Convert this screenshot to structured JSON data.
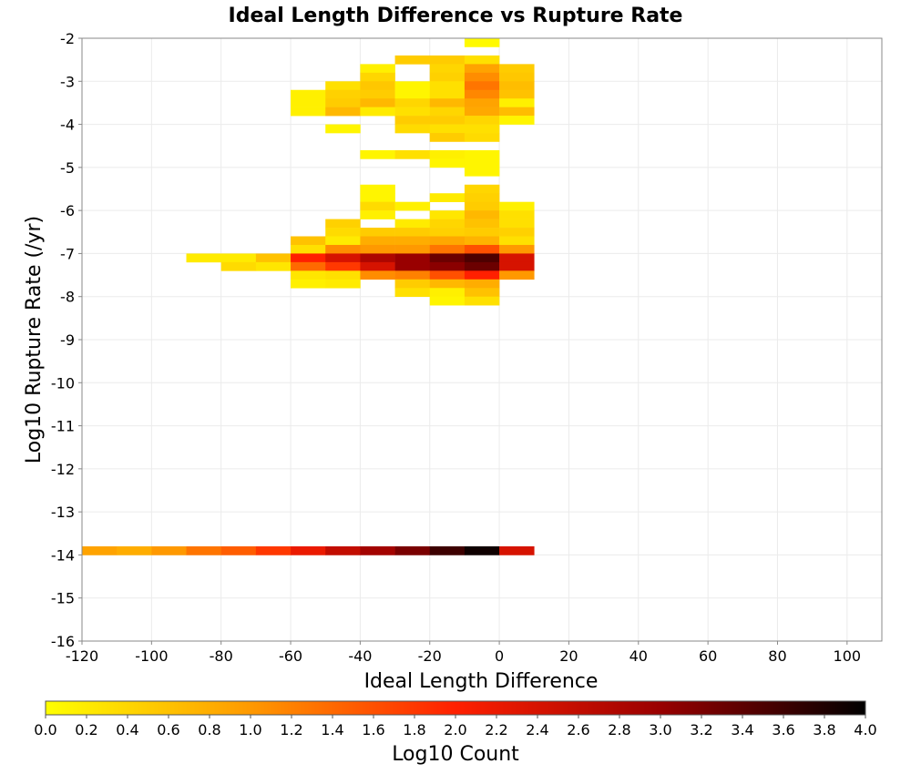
{
  "chart_data": {
    "type": "heatmap",
    "title": "Ideal Length Difference vs Rupture Rate",
    "xlabel": "Ideal Length Difference",
    "ylabel": "Log10 Rupture Rate (/yr)",
    "xlim": [
      -120,
      110
    ],
    "ylim": [
      -16,
      -2
    ],
    "x_ticks": [
      "-120",
      "-100",
      "-80",
      "-60",
      "-40",
      "-20",
      "0",
      "20",
      "40",
      "60",
      "80",
      "100"
    ],
    "y_ticks": [
      "-2",
      "-3",
      "-4",
      "-5",
      "-6",
      "-7",
      "-8",
      "-9",
      "-10",
      "-11",
      "-12",
      "-13",
      "-14",
      "-15",
      "-16"
    ],
    "grid": true,
    "bin_width_x": 10,
    "bin_height_y": 0.2,
    "colorbar": {
      "label": "Log10 Count",
      "range": [
        0,
        4
      ],
      "ticks": [
        "0.0",
        "0.2",
        "0.4",
        "0.6",
        "0.8",
        "1.0",
        "1.2",
        "1.4",
        "1.6",
        "1.8",
        "2.0",
        "2.2",
        "2.4",
        "2.6",
        "2.8",
        "3.0",
        "3.2",
        "3.4",
        "3.6",
        "3.8",
        "4.0"
      ],
      "colors": [
        "#ffff00",
        "#ff9900",
        "#ff2000",
        "#990000",
        "#000000"
      ]
    },
    "rows": [
      {
        "y": -2.0,
        "cells": [
          [
            -10,
            0.05
          ]
        ]
      },
      {
        "y": -2.4,
        "cells": [
          [
            -30,
            0.5
          ],
          [
            -20,
            0.5
          ],
          [
            -10,
            0.3
          ]
        ]
      },
      {
        "y": -2.6,
        "cells": [
          [
            -40,
            0.15
          ],
          [
            -20,
            0.4
          ],
          [
            -10,
            0.9
          ],
          [
            0,
            0.5
          ]
        ]
      },
      {
        "y": -2.8,
        "cells": [
          [
            -40,
            0.4
          ],
          [
            -20,
            0.45
          ],
          [
            -10,
            1.1
          ],
          [
            0,
            0.55
          ]
        ]
      },
      {
        "y": -3.0,
        "cells": [
          [
            -50,
            0.3
          ],
          [
            -40,
            0.55
          ],
          [
            -30,
            0.1
          ],
          [
            -20,
            0.3
          ],
          [
            -10,
            1.3
          ],
          [
            0,
            0.65
          ]
        ]
      },
      {
        "y": -3.2,
        "cells": [
          [
            -60,
            0.15
          ],
          [
            -50,
            0.45
          ],
          [
            -40,
            0.5
          ],
          [
            -30,
            0.1
          ],
          [
            -20,
            0.3
          ],
          [
            -10,
            1.15
          ],
          [
            0,
            0.6
          ]
        ]
      },
      {
        "y": -3.4,
        "cells": [
          [
            -60,
            0.15
          ],
          [
            -50,
            0.5
          ],
          [
            -40,
            0.7
          ],
          [
            -30,
            0.4
          ],
          [
            -20,
            0.7
          ],
          [
            -10,
            0.9
          ],
          [
            0,
            0.15
          ]
        ]
      },
      {
        "y": -3.6,
        "cells": [
          [
            -60,
            0.15
          ],
          [
            -50,
            0.7
          ],
          [
            -40,
            0.2
          ],
          [
            -30,
            0.3
          ],
          [
            -20,
            0.4
          ],
          [
            -10,
            0.85
          ],
          [
            0,
            0.65
          ]
        ]
      },
      {
        "y": -3.8,
        "cells": [
          [
            -30,
            0.5
          ],
          [
            -20,
            0.5
          ],
          [
            -10,
            0.4
          ],
          [
            0,
            0.1
          ]
        ]
      },
      {
        "y": -4.0,
        "cells": [
          [
            -50,
            0.1
          ],
          [
            -30,
            0.35
          ],
          [
            -20,
            0.3
          ],
          [
            -10,
            0.3
          ]
        ]
      },
      {
        "y": -4.2,
        "cells": [
          [
            -20,
            0.5
          ],
          [
            -10,
            0.35
          ]
        ]
      },
      {
        "y": -4.6,
        "cells": [
          [
            -40,
            0.1
          ],
          [
            -30,
            0.3
          ],
          [
            -20,
            0.15
          ],
          [
            -10,
            0.1
          ]
        ]
      },
      {
        "y": -4.8,
        "cells": [
          [
            -20,
            0.1
          ],
          [
            -10,
            0.1
          ]
        ]
      },
      {
        "y": -5.0,
        "cells": [
          [
            -10,
            0.1
          ]
        ]
      },
      {
        "y": -5.4,
        "cells": [
          [
            -40,
            0.1
          ],
          [
            -10,
            0.4
          ]
        ]
      },
      {
        "y": -5.6,
        "cells": [
          [
            -40,
            0.1
          ],
          [
            -20,
            0.2
          ],
          [
            -10,
            0.45
          ]
        ]
      },
      {
        "y": -5.8,
        "cells": [
          [
            -40,
            0.35
          ],
          [
            -30,
            0.15
          ],
          [
            -10,
            0.5
          ],
          [
            0,
            0.15
          ]
        ]
      },
      {
        "y": -6.0,
        "cells": [
          [
            -40,
            0.15
          ],
          [
            -20,
            0.25
          ],
          [
            -10,
            0.7
          ],
          [
            0,
            0.3
          ]
        ]
      },
      {
        "y": -6.2,
        "cells": [
          [
            -50,
            0.45
          ],
          [
            -30,
            0.2
          ],
          [
            -20,
            0.4
          ],
          [
            -10,
            0.6
          ],
          [
            0,
            0.3
          ]
        ]
      },
      {
        "y": -6.4,
        "cells": [
          [
            -50,
            0.35
          ],
          [
            -40,
            0.5
          ],
          [
            -30,
            0.5
          ],
          [
            -20,
            0.45
          ],
          [
            -10,
            0.5
          ],
          [
            0,
            0.45
          ]
        ]
      },
      {
        "y": -6.6,
        "cells": [
          [
            -60,
            0.6
          ],
          [
            -50,
            0.2
          ],
          [
            -40,
            0.8
          ],
          [
            -30,
            0.8
          ],
          [
            -20,
            0.85
          ],
          [
            -10,
            0.75
          ],
          [
            0,
            0.3
          ]
        ]
      },
      {
        "y": -6.8,
        "cells": [
          [
            -60,
            0.3
          ],
          [
            -50,
            1.1
          ],
          [
            -40,
            1.0
          ],
          [
            -30,
            1.0
          ],
          [
            -20,
            1.3
          ],
          [
            -10,
            1.6
          ],
          [
            0,
            1.0
          ]
        ]
      },
      {
        "y": -7.0,
        "cells": [
          [
            -90,
            0.2
          ],
          [
            -80,
            0.2
          ],
          [
            -70,
            0.6
          ],
          [
            -60,
            2.0
          ],
          [
            -50,
            2.4
          ],
          [
            -40,
            2.8
          ],
          [
            -30,
            3.0
          ],
          [
            -20,
            3.3
          ],
          [
            -10,
            3.5
          ],
          [
            0,
            2.4
          ]
        ]
      },
      {
        "y": -7.2,
        "cells": [
          [
            -80,
            0.35
          ],
          [
            -70,
            0.25
          ],
          [
            -60,
            1.4
          ],
          [
            -50,
            1.8
          ],
          [
            -40,
            2.4
          ],
          [
            -30,
            3.0
          ],
          [
            -20,
            3.1
          ],
          [
            -10,
            3.3
          ],
          [
            0,
            2.4
          ]
        ]
      },
      {
        "y": -7.4,
        "cells": [
          [
            -60,
            0.25
          ],
          [
            -50,
            0.3
          ],
          [
            -40,
            1.1
          ],
          [
            -30,
            1.2
          ],
          [
            -20,
            1.6
          ],
          [
            -10,
            2.0
          ],
          [
            0,
            1.0
          ]
        ]
      },
      {
        "y": -7.6,
        "cells": [
          [
            -60,
            0.15
          ],
          [
            -50,
            0.2
          ],
          [
            -30,
            0.5
          ],
          [
            -20,
            0.7
          ],
          [
            -10,
            0.8
          ]
        ]
      },
      {
        "y": -7.8,
        "cells": [
          [
            -30,
            0.3
          ],
          [
            -20,
            0.15
          ],
          [
            -10,
            0.6
          ]
        ]
      },
      {
        "y": -8.0,
        "cells": [
          [
            -20,
            0.1
          ],
          [
            -10,
            0.3
          ]
        ]
      },
      {
        "y": -13.8,
        "cells": [
          [
            -120,
            0.9
          ],
          [
            -110,
            0.8
          ],
          [
            -100,
            1.0
          ],
          [
            -90,
            1.3
          ],
          [
            -80,
            1.5
          ],
          [
            -70,
            1.8
          ],
          [
            -60,
            2.2
          ],
          [
            -50,
            2.6
          ],
          [
            -40,
            2.9
          ],
          [
            -30,
            3.2
          ],
          [
            -20,
            3.6
          ],
          [
            -10,
            3.9
          ],
          [
            0,
            2.4
          ]
        ]
      }
    ]
  }
}
